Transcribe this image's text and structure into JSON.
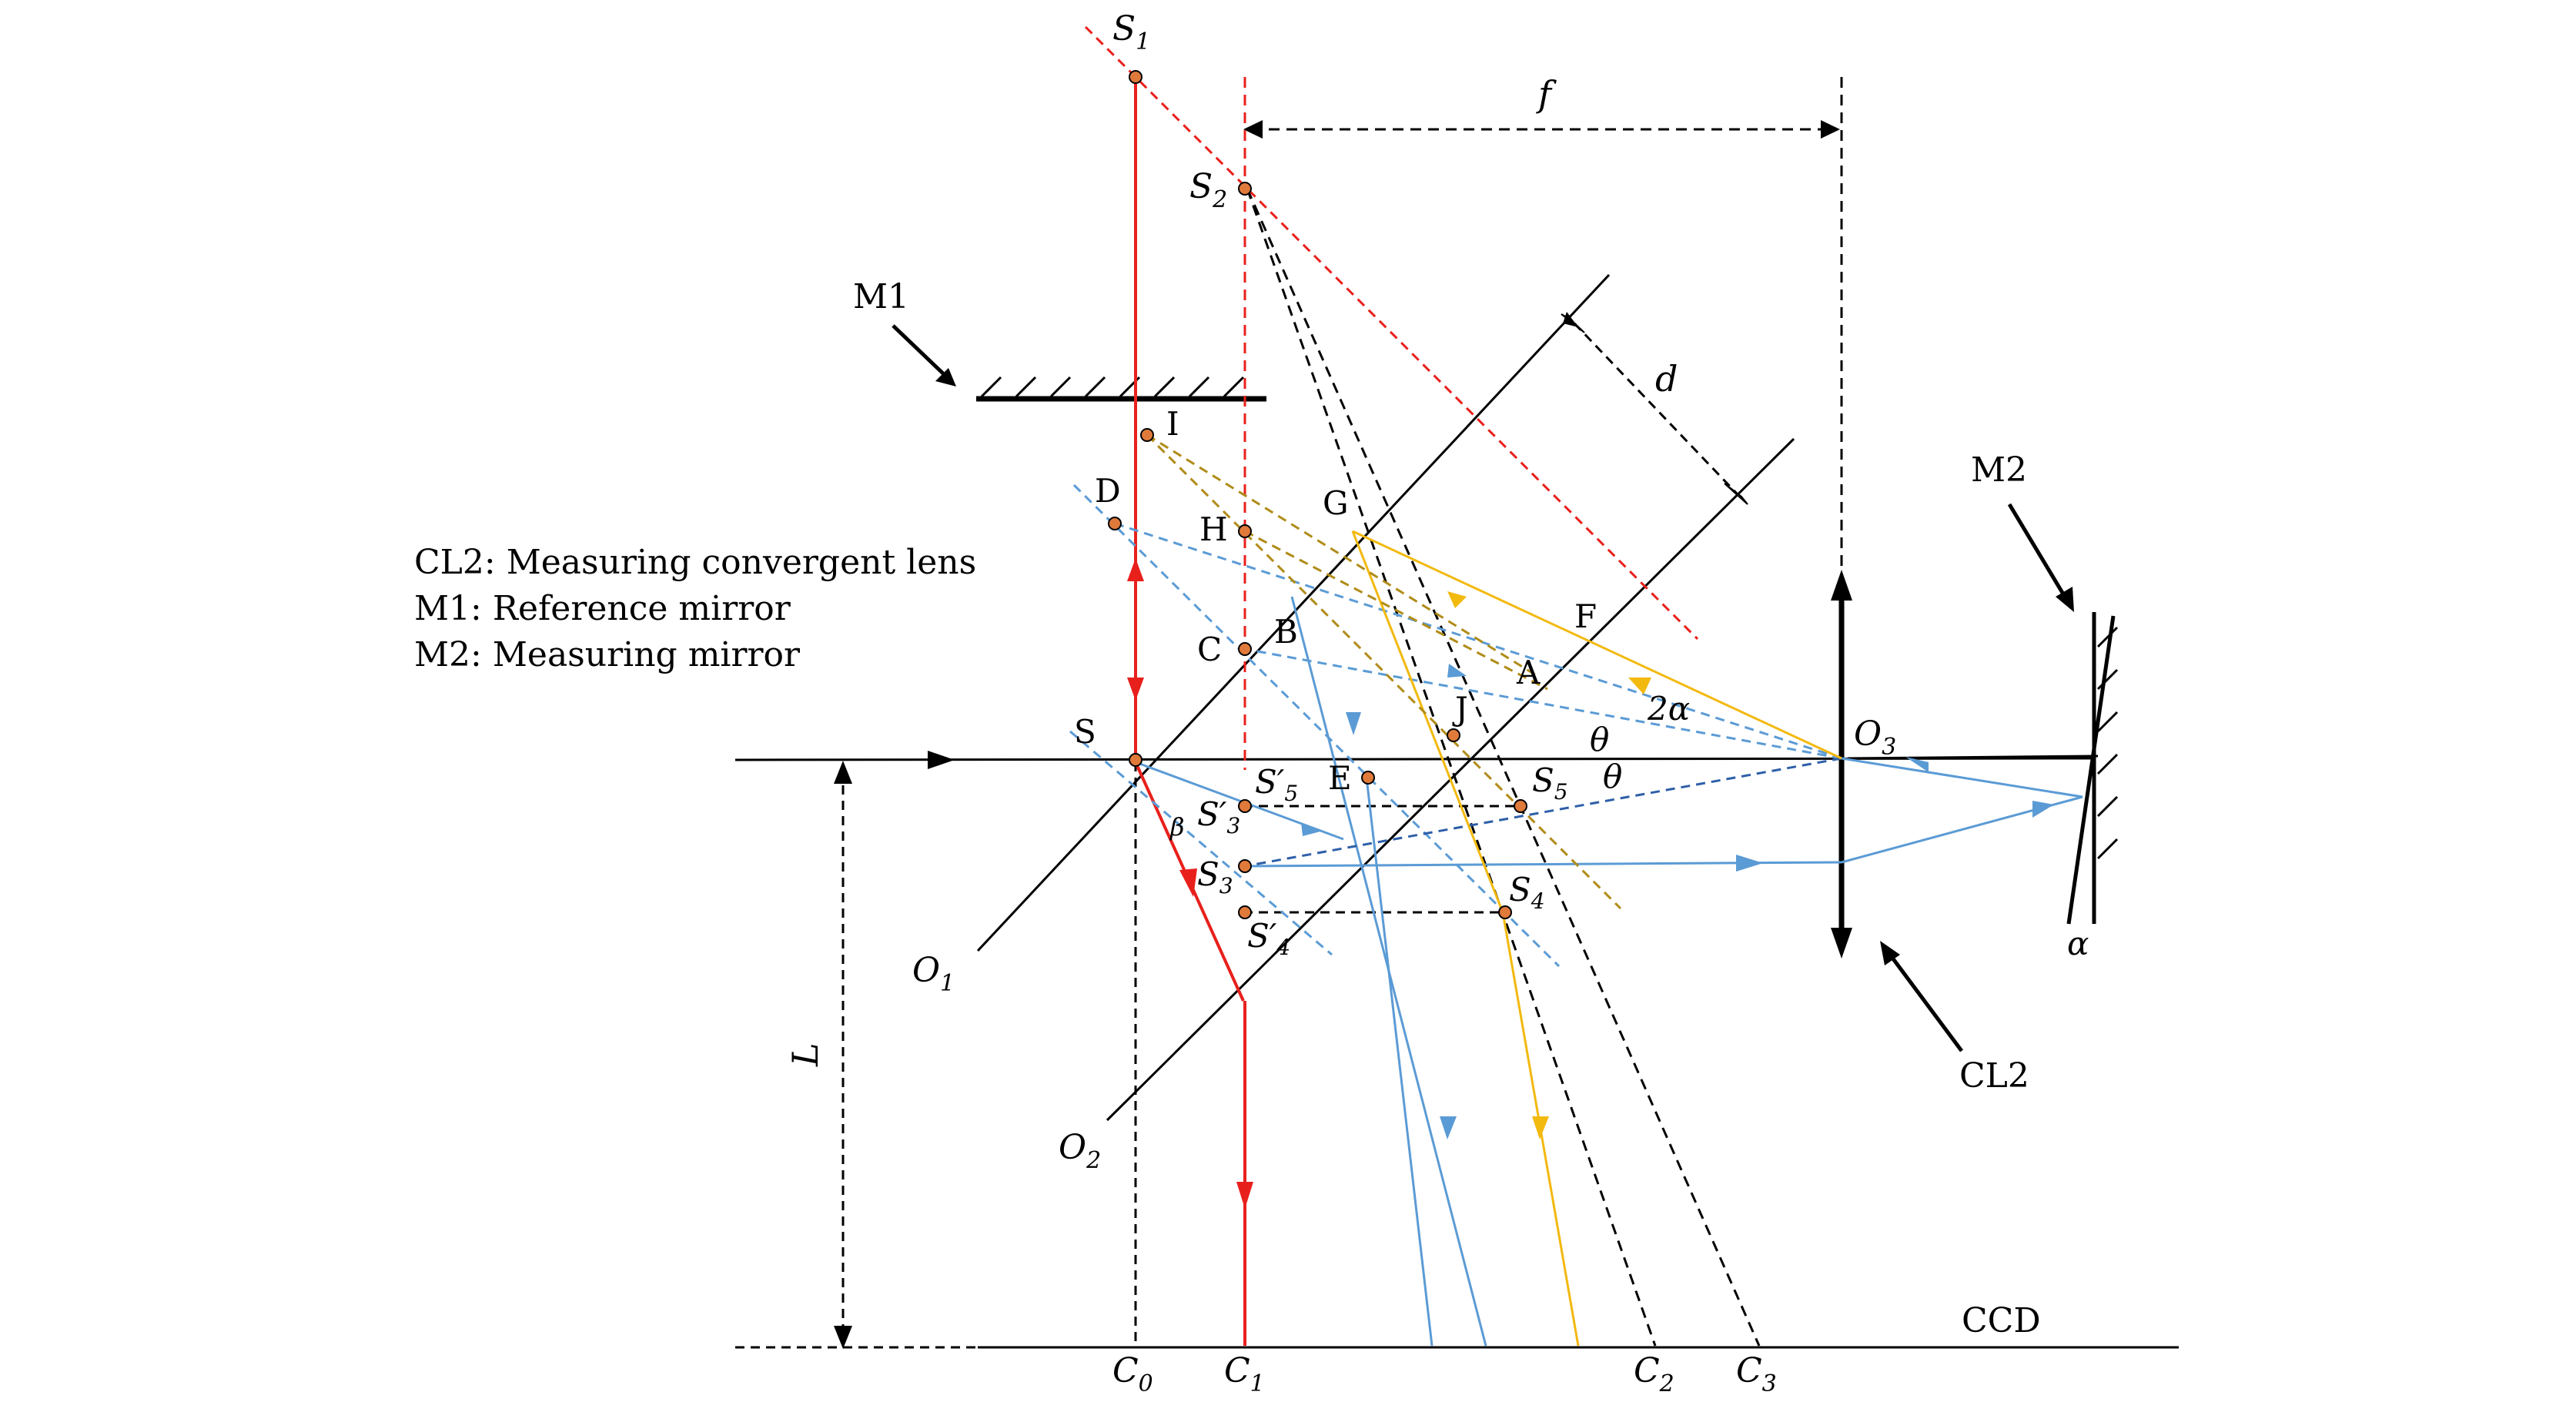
{
  "legend": [
    "CL2: Measuring convergent lens",
    "M1: Reference mirror",
    "M2: Measuring mirror"
  ],
  "labels": {
    "S1": "S",
    "S1_sub": "1",
    "S2": "S",
    "S2_sub": "2",
    "f": "f",
    "d": "d",
    "M1": "M1",
    "M2": "M2",
    "I": "I",
    "D": "D",
    "G": "G",
    "H": "H",
    "F": "F",
    "B": "B",
    "C": "C",
    "A": "A",
    "J": "J",
    "two_alpha": "2α",
    "theta1": "θ",
    "theta2": "θ",
    "O3": "O",
    "O3_sub": "3",
    "S": "S",
    "E": "E",
    "S5p": "S′",
    "S5p_sub": "5",
    "S5": "S",
    "S5_sub": "5",
    "S3p": "S′",
    "S3p_sub": "3",
    "beta": "β",
    "S3": "S",
    "S3_sub": "3",
    "S4": "S",
    "S4_sub": "4",
    "S4p": "S′",
    "S4p_sub": "4",
    "alpha": "α",
    "O1": "O",
    "O1_sub": "1",
    "O2": "O",
    "O2_sub": "2",
    "CL2": "CL2",
    "L": "L",
    "CCD": "CCD",
    "C0": "C",
    "C0_sub": "0",
    "C1": "C",
    "C1_sub": "1",
    "C2": "C",
    "C2_sub": "2",
    "C3": "C",
    "C3_sub": "3"
  },
  "colors": {
    "red": "#e8201c",
    "blue": "#5b9bd5",
    "darkblue": "#2e5fa8",
    "yellow": "#f2b90f",
    "olive": "#b08c18",
    "point": "#e07a3a",
    "black": "#000000"
  }
}
